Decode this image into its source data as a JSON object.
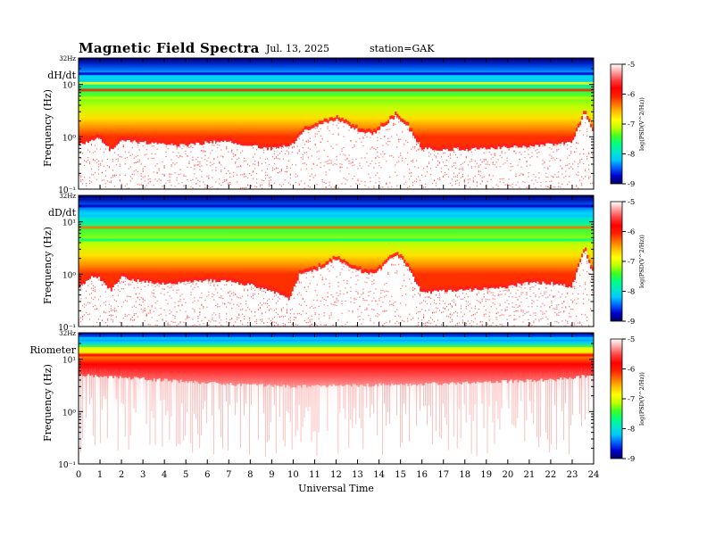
{
  "header": {
    "title": "Magnetic Field Spectra",
    "date": "Jul. 13, 2025",
    "station": "station=GAK"
  },
  "colorscale": [
    "#000060",
    "#0000d0",
    "#0060ff",
    "#00c8ff",
    "#00e8c8",
    "#00ff80",
    "#40ff20",
    "#c0ff00",
    "#ffff00",
    "#ffc000",
    "#ff7000",
    "#ff2000",
    "#ff0000",
    "#ff4040",
    "#ffa0a0",
    "#ffffff"
  ],
  "chart_data": [
    {
      "type": "heatmap",
      "panel_label": "dH/dt",
      "top_tick_label": "32Hz",
      "ylabel": "Frequency (Hz)",
      "y_scale": "log",
      "y_ticks": [
        {
          "value": 0.1,
          "label": "10⁻¹"
        },
        {
          "value": 1,
          "label": "10⁰"
        },
        {
          "value": 10,
          "label": "10¹"
        }
      ],
      "ylim": [
        0.1,
        32
      ],
      "x_range": [
        0,
        24
      ],
      "colorbar": {
        "label": "log(PSD(V^2/Hz))",
        "range": [
          -9,
          -5
        ],
        "ticks": [
          "-5",
          "-6",
          "-7",
          "-8",
          "-9"
        ]
      },
      "spectral_floor_hz": [
        [
          0,
          0.72
        ],
        [
          1,
          1.0
        ],
        [
          1.5,
          0.55
        ],
        [
          2,
          0.9
        ],
        [
          3,
          0.8
        ],
        [
          4,
          0.75
        ],
        [
          5,
          0.7
        ],
        [
          6,
          0.8
        ],
        [
          7,
          0.85
        ],
        [
          8,
          0.7
        ],
        [
          9,
          0.6
        ],
        [
          10,
          0.75
        ],
        [
          10.5,
          1.3
        ],
        [
          11,
          1.6
        ],
        [
          12,
          2.2
        ],
        [
          13,
          1.4
        ],
        [
          13.7,
          1.15
        ],
        [
          14.4,
          1.9
        ],
        [
          14.8,
          2.6
        ],
        [
          15.3,
          1.7
        ],
        [
          16,
          0.62
        ],
        [
          17,
          0.6
        ],
        [
          18,
          0.6
        ],
        [
          19,
          0.62
        ],
        [
          20,
          0.65
        ],
        [
          21,
          0.7
        ],
        [
          22,
          0.75
        ],
        [
          23,
          0.8
        ],
        [
          23.6,
          3.0
        ],
        [
          24,
          1.2
        ]
      ],
      "bands_hz": [
        {
          "freq": 16,
          "level": -8.6
        },
        {
          "freq": 12,
          "level": -8.0
        },
        {
          "freq": 10.5,
          "level": -6.8
        },
        {
          "freq": 7.8,
          "level": -6.0
        },
        {
          "freq": 5.5,
          "level": -7.0
        }
      ]
    },
    {
      "type": "heatmap",
      "panel_label": "dD/dt",
      "top_tick_label": "32Hz",
      "ylabel": "Frequency (Hz)",
      "y_scale": "log",
      "y_ticks": [
        {
          "value": 0.1,
          "label": "10⁻¹"
        },
        {
          "value": 1,
          "label": "10⁰"
        },
        {
          "value": 10,
          "label": "10¹"
        }
      ],
      "ylim": [
        0.1,
        32
      ],
      "x_range": [
        0,
        24
      ],
      "colorbar": {
        "label": "log(PSD(V^2/Hz))",
        "range": [
          -9,
          -5
        ],
        "ticks": [
          "-5",
          "-6",
          "-7",
          "-8",
          "-9"
        ]
      },
      "spectral_floor_hz": [
        [
          0,
          0.6
        ],
        [
          0.8,
          1.0
        ],
        [
          1.5,
          0.5
        ],
        [
          2,
          0.9
        ],
        [
          3,
          0.75
        ],
        [
          4,
          0.7
        ],
        [
          5,
          0.72
        ],
        [
          6,
          0.8
        ],
        [
          7,
          0.75
        ],
        [
          8,
          0.65
        ],
        [
          9,
          0.5
        ],
        [
          9.8,
          0.35
        ],
        [
          10.3,
          1.0
        ],
        [
          11,
          1.2
        ],
        [
          12,
          2.0
        ],
        [
          12.8,
          1.3
        ],
        [
          13.8,
          1.0
        ],
        [
          14.4,
          1.8
        ],
        [
          14.8,
          2.5
        ],
        [
          15.3,
          1.5
        ],
        [
          16,
          0.45
        ],
        [
          17,
          0.5
        ],
        [
          18,
          0.5
        ],
        [
          19,
          0.55
        ],
        [
          20,
          0.6
        ],
        [
          21,
          0.7
        ],
        [
          22,
          0.7
        ],
        [
          23,
          0.6
        ],
        [
          23.6,
          3.0
        ],
        [
          24,
          1.0
        ]
      ],
      "bands_hz": [
        {
          "freq": 20,
          "level": -8.7
        },
        {
          "freq": 13,
          "level": -8.0
        },
        {
          "freq": 7.8,
          "level": -6.2
        },
        {
          "freq": 4.5,
          "level": -7.6
        }
      ]
    },
    {
      "type": "heatmap",
      "panel_label": "Riometer",
      "top_tick_label": "32Hz",
      "ylabel": "Frequency (Hz)",
      "y_scale": "log",
      "y_ticks": [
        {
          "value": 0.1,
          "label": "10⁻¹"
        },
        {
          "value": 1,
          "label": "10⁰"
        },
        {
          "value": 10,
          "label": "10¹"
        }
      ],
      "ylim": [
        0.1,
        32
      ],
      "x_range": [
        0,
        24
      ],
      "colorbar": {
        "label": "log(PSD(V^2/Hz))",
        "range": [
          -9,
          -5
        ],
        "ticks": [
          "-5",
          "-6",
          "-7",
          "-8",
          "-9"
        ]
      },
      "spectral_floor_hz": [
        [
          0,
          5.0
        ],
        [
          6,
          3.5
        ],
        [
          10,
          3.0
        ],
        [
          14,
          3.2
        ],
        [
          18,
          3.5
        ],
        [
          22,
          4.0
        ],
        [
          24,
          5.0
        ]
      ],
      "bands_hz": [
        {
          "freq": 25,
          "level": -8.0
        },
        {
          "freq": 16,
          "level": -6.8
        },
        {
          "freq": 12,
          "level": -5.7
        }
      ]
    }
  ],
  "x_axis": {
    "label": "Universal Time",
    "ticks": [
      "0",
      "1",
      "2",
      "3",
      "4",
      "5",
      "6",
      "7",
      "8",
      "9",
      "10",
      "11",
      "12",
      "13",
      "14",
      "15",
      "16",
      "17",
      "18",
      "19",
      "20",
      "21",
      "22",
      "23",
      "24"
    ]
  }
}
